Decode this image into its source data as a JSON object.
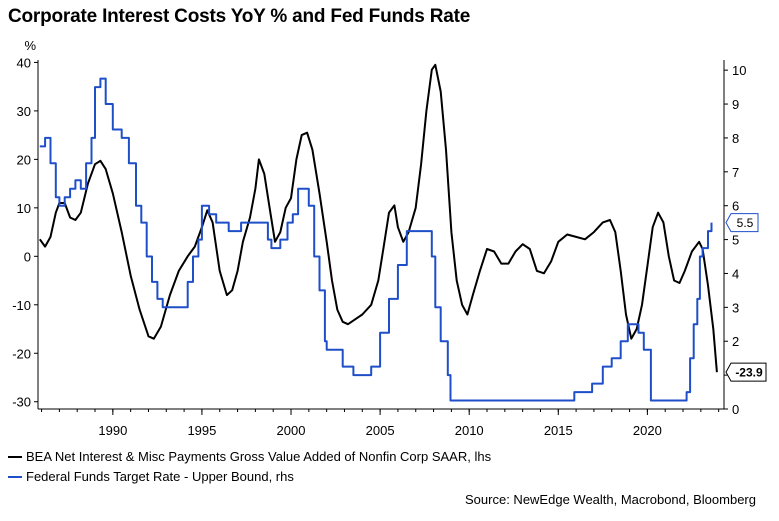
{
  "title": "Corporate Interest Costs YoY % and Fed Funds Rate",
  "source": "Source: NewEdge Wealth, Macrobond, Bloomberg",
  "colors": {
    "series_black": "#000000",
    "series_blue": "#1f4fc8",
    "axis": "#000000",
    "grid": "#d9d9d9"
  },
  "chart_data": {
    "type": "line",
    "left_axis": {
      "unit": "%",
      "ticks": [
        40,
        30,
        20,
        10,
        0,
        -10,
        -20,
        -30
      ],
      "range": [
        -31.5,
        40.5
      ]
    },
    "right_axis": {
      "ticks": [
        10,
        9,
        8,
        7,
        6,
        5,
        4,
        3,
        2,
        1,
        0
      ],
      "range": [
        0,
        10.3
      ]
    },
    "x_axis": {
      "ticks": [
        "1990",
        "1995",
        "2000",
        "2005",
        "2010",
        "2015",
        "2020"
      ],
      "range": [
        1985.8,
        2024.3
      ]
    },
    "grid": false,
    "legend_position": "bottom",
    "series": [
      {
        "name": "BEA Net Interest & Misc Payments Gross Value Added of Nonfin Corp SAAR, lhs",
        "axis": "left",
        "end_label": "-23.9",
        "points": [
          [
            1985.9,
            3.5
          ],
          [
            1986.2,
            2
          ],
          [
            1986.5,
            4
          ],
          [
            1986.8,
            9
          ],
          [
            1987.0,
            11
          ],
          [
            1987.3,
            11
          ],
          [
            1987.6,
            8
          ],
          [
            1987.9,
            7.5
          ],
          [
            1988.2,
            9
          ],
          [
            1988.6,
            15
          ],
          [
            1989.0,
            19
          ],
          [
            1989.3,
            19.7
          ],
          [
            1989.6,
            18
          ],
          [
            1990.0,
            13
          ],
          [
            1990.5,
            5
          ],
          [
            1991.0,
            -4
          ],
          [
            1991.5,
            -11
          ],
          [
            1992.0,
            -16.5
          ],
          [
            1992.3,
            -17
          ],
          [
            1992.7,
            -14.5
          ],
          [
            1993.2,
            -8
          ],
          [
            1993.7,
            -3
          ],
          [
            1994.2,
            0
          ],
          [
            1994.6,
            2
          ],
          [
            1995.0,
            6
          ],
          [
            1995.3,
            9.5
          ],
          [
            1995.6,
            7
          ],
          [
            1996.0,
            -3
          ],
          [
            1996.4,
            -8
          ],
          [
            1996.7,
            -7
          ],
          [
            1997.0,
            -3
          ],
          [
            1997.3,
            3
          ],
          [
            1997.7,
            8
          ],
          [
            1998.0,
            14
          ],
          [
            1998.2,
            20
          ],
          [
            1998.5,
            17
          ],
          [
            1998.8,
            10
          ],
          [
            1999.1,
            3
          ],
          [
            1999.4,
            5
          ],
          [
            1999.7,
            10
          ],
          [
            2000.0,
            12
          ],
          [
            2000.3,
            20
          ],
          [
            2000.6,
            25
          ],
          [
            2000.9,
            25.5
          ],
          [
            2001.2,
            22
          ],
          [
            2001.6,
            13
          ],
          [
            2002.0,
            3
          ],
          [
            2002.3,
            -5
          ],
          [
            2002.6,
            -11
          ],
          [
            2002.9,
            -13.5
          ],
          [
            2003.2,
            -14
          ],
          [
            2003.6,
            -13
          ],
          [
            2004.0,
            -12
          ],
          [
            2004.5,
            -10
          ],
          [
            2004.9,
            -5
          ],
          [
            2005.2,
            2
          ],
          [
            2005.5,
            9
          ],
          [
            2005.8,
            10.5
          ],
          [
            2006.0,
            6
          ],
          [
            2006.3,
            3
          ],
          [
            2006.6,
            5
          ],
          [
            2007.0,
            10
          ],
          [
            2007.3,
            19
          ],
          [
            2007.6,
            30
          ],
          [
            2007.9,
            38.5
          ],
          [
            2008.1,
            39.5
          ],
          [
            2008.4,
            34
          ],
          [
            2008.7,
            22
          ],
          [
            2009.0,
            5
          ],
          [
            2009.3,
            -5
          ],
          [
            2009.6,
            -10
          ],
          [
            2009.9,
            -12
          ],
          [
            2010.2,
            -8
          ],
          [
            2010.6,
            -3
          ],
          [
            2011.0,
            1.5
          ],
          [
            2011.4,
            1
          ],
          [
            2011.8,
            -1.5
          ],
          [
            2012.2,
            -1.5
          ],
          [
            2012.6,
            1
          ],
          [
            2013.0,
            2.5
          ],
          [
            2013.4,
            1.5
          ],
          [
            2013.8,
            -3
          ],
          [
            2014.2,
            -3.5
          ],
          [
            2014.6,
            -1
          ],
          [
            2015.0,
            3
          ],
          [
            2015.5,
            4.5
          ],
          [
            2016.0,
            4
          ],
          [
            2016.5,
            3.5
          ],
          [
            2017.0,
            5
          ],
          [
            2017.5,
            7
          ],
          [
            2017.9,
            7.5
          ],
          [
            2018.2,
            5
          ],
          [
            2018.5,
            -3
          ],
          [
            2018.8,
            -12
          ],
          [
            2019.1,
            -17
          ],
          [
            2019.4,
            -15
          ],
          [
            2019.7,
            -10
          ],
          [
            2020.0,
            -2
          ],
          [
            2020.3,
            6
          ],
          [
            2020.6,
            9
          ],
          [
            2020.9,
            7
          ],
          [
            2021.2,
            0
          ],
          [
            2021.5,
            -5
          ],
          [
            2021.8,
            -5.5
          ],
          [
            2022.1,
            -3
          ],
          [
            2022.5,
            1
          ],
          [
            2022.9,
            3
          ],
          [
            2023.1,
            1.5
          ],
          [
            2023.4,
            -6
          ],
          [
            2023.7,
            -15
          ],
          [
            2023.9,
            -23.9
          ]
        ]
      },
      {
        "name": "Federal Funds Target Rate - Upper Bound, rhs",
        "axis": "right",
        "end_label": "5.5",
        "points": [
          [
            1985.9,
            7.75
          ],
          [
            1986.2,
            8
          ],
          [
            1986.5,
            7.25
          ],
          [
            1986.8,
            6.25
          ],
          [
            1987.0,
            6
          ],
          [
            1987.3,
            6.25
          ],
          [
            1987.6,
            6.5
          ],
          [
            1987.9,
            6.75
          ],
          [
            1988.2,
            6.5
          ],
          [
            1988.5,
            7.25
          ],
          [
            1988.8,
            8
          ],
          [
            1989.0,
            9.5
          ],
          [
            1989.3,
            9.75
          ],
          [
            1989.6,
            9
          ],
          [
            1990.0,
            8.25
          ],
          [
            1990.5,
            8
          ],
          [
            1990.9,
            7.25
          ],
          [
            1991.3,
            6
          ],
          [
            1991.6,
            5.5
          ],
          [
            1991.9,
            4.5
          ],
          [
            1992.2,
            3.75
          ],
          [
            1992.5,
            3.25
          ],
          [
            1992.8,
            3
          ],
          [
            1993.5,
            3
          ],
          [
            1994.0,
            3
          ],
          [
            1994.2,
            3.75
          ],
          [
            1994.5,
            4.5
          ],
          [
            1994.8,
            5
          ],
          [
            1995.0,
            6
          ],
          [
            1995.4,
            5.75
          ],
          [
            1995.8,
            5.5
          ],
          [
            1996.5,
            5.25
          ],
          [
            1997.0,
            5.25
          ],
          [
            1997.2,
            5.5
          ],
          [
            1998.4,
            5.5
          ],
          [
            1998.7,
            5
          ],
          [
            1998.9,
            4.75
          ],
          [
            1999.4,
            5
          ],
          [
            1999.8,
            5.5
          ],
          [
            2000.1,
            5.75
          ],
          [
            2000.4,
            6.5
          ],
          [
            2000.9,
            6.5
          ],
          [
            2001.0,
            6
          ],
          [
            2001.3,
            4.5
          ],
          [
            2001.6,
            3.5
          ],
          [
            2001.9,
            2
          ],
          [
            2002.0,
            1.75
          ],
          [
            2002.9,
            1.25
          ],
          [
            2003.5,
            1
          ],
          [
            2004.5,
            1.25
          ],
          [
            2005.0,
            2.25
          ],
          [
            2005.5,
            3.25
          ],
          [
            2006.0,
            4.25
          ],
          [
            2006.5,
            5.25
          ],
          [
            2007.6,
            5.25
          ],
          [
            2007.9,
            4.5
          ],
          [
            2008.1,
            3
          ],
          [
            2008.4,
            2
          ],
          [
            2008.8,
            1
          ],
          [
            2008.95,
            0.25
          ],
          [
            2015.9,
            0.5
          ],
          [
            2016.9,
            0.75
          ],
          [
            2017.5,
            1.25
          ],
          [
            2018.0,
            1.5
          ],
          [
            2018.5,
            2
          ],
          [
            2018.9,
            2.5
          ],
          [
            2019.5,
            2.25
          ],
          [
            2019.8,
            1.75
          ],
          [
            2020.2,
            0.25
          ],
          [
            2022.2,
            0.5
          ],
          [
            2022.4,
            1.5
          ],
          [
            2022.6,
            2.5
          ],
          [
            2022.8,
            3.25
          ],
          [
            2022.95,
            4.5
          ],
          [
            2023.1,
            4.75
          ],
          [
            2023.4,
            5.25
          ],
          [
            2023.6,
            5.5
          ]
        ]
      }
    ]
  }
}
